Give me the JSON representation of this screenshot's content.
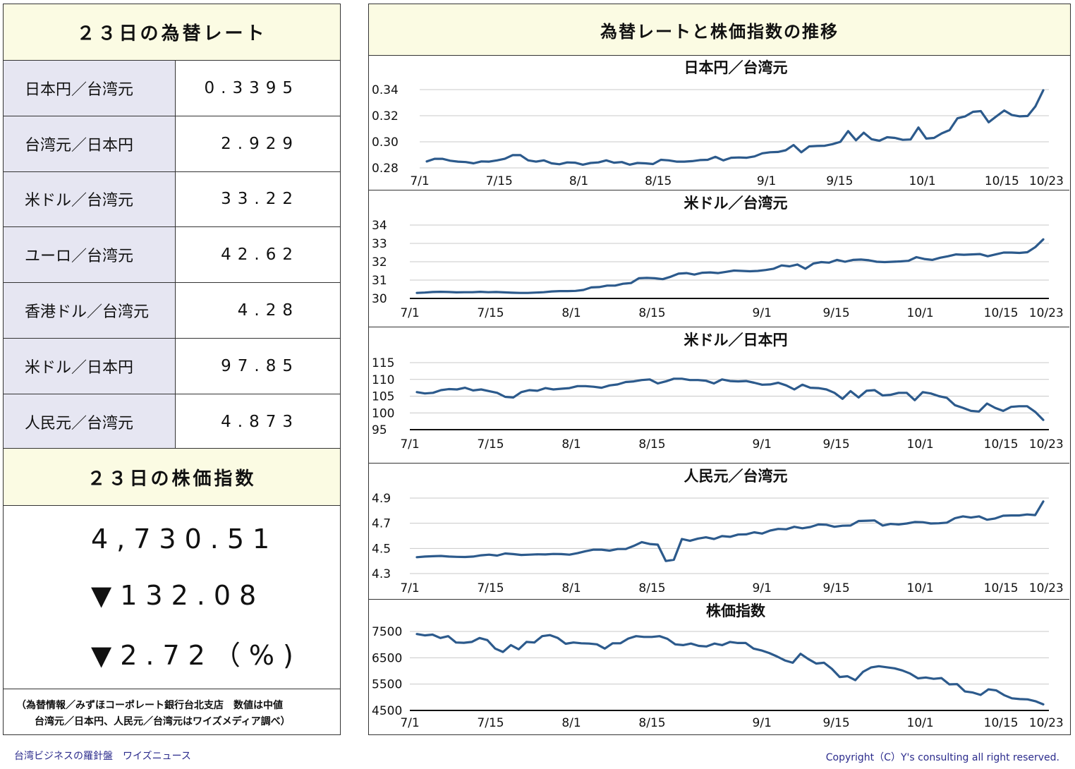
{
  "rates": {
    "title": "２３日の為替レート",
    "rows": [
      {
        "name": "日本円／台湾元",
        "value": "0.3395"
      },
      {
        "name": "台湾元／日本円",
        "value": "2.929"
      },
      {
        "name": "米ドル／台湾元",
        "value": "33.22"
      },
      {
        "name": "ユーロ／台湾元",
        "value": "42.62"
      },
      {
        "name": "香港ドル／台湾元",
        "value": "4.28"
      },
      {
        "name": "米ドル／日本円",
        "value": "97.85"
      },
      {
        "name": "人民元／台湾元",
        "value": "4.873"
      }
    ]
  },
  "index": {
    "title": "２３日の株価指数",
    "value": "4,730.51",
    "change": "▼132.08",
    "percent": "▼2.72（%)",
    "note_line1": "（為替情報／みずほコーポレート銀行台北支店　数値は中値",
    "note_line2": "台湾元／日本円、人民元／台湾元はワイズメディア調べ）"
  },
  "panel": {
    "title": "為替レートと株価指数の推移"
  },
  "footer": {
    "left": "台湾ビジネスの羅針盤　ワイズニュース",
    "right": "Copyright（C）Y's consulting all right reserved."
  },
  "chart_data": [
    {
      "type": "line",
      "title": "日本円／台湾元",
      "xticks": [
        "7/1",
        "7/15",
        "8/1",
        "8/15",
        "9/1",
        "9/15",
        "10/1",
        "10/15",
        "10/23"
      ],
      "yticks": [
        "0.34",
        "0.32",
        "0.30",
        "0.28"
      ],
      "ylim": [
        0.28,
        0.34
      ],
      "color": "#2c5a8c",
      "series": [
        {
          "values": [
            0.285,
            0.287,
            0.287,
            0.2855,
            0.2848,
            0.2845,
            0.2835,
            0.285,
            0.2848,
            0.2858,
            0.287,
            0.2898,
            0.2898,
            0.2858,
            0.2848,
            0.2858,
            0.2835,
            0.2828,
            0.2842,
            0.284,
            0.2825,
            0.2838,
            0.2842,
            0.2858,
            0.284,
            0.2845,
            0.2825,
            0.2838,
            0.2835,
            0.283,
            0.2862,
            0.2858,
            0.2848,
            0.2848,
            0.2852,
            0.286,
            0.2862,
            0.2885,
            0.2858,
            0.2878,
            0.288,
            0.2878,
            0.2888,
            0.2912,
            0.292,
            0.2922,
            0.2935,
            0.2975,
            0.292,
            0.2965,
            0.2968,
            0.297,
            0.2982,
            0.3,
            0.3082,
            0.3012,
            0.307,
            0.302,
            0.3008,
            0.3035,
            0.303,
            0.3015,
            0.3018,
            0.311,
            0.3025,
            0.303,
            0.3065,
            0.309,
            0.318,
            0.3195,
            0.323,
            0.3235,
            0.315,
            0.3195,
            0.324,
            0.3205,
            0.3195,
            0.3198,
            0.3272,
            0.3395
          ]
        }
      ]
    },
    {
      "type": "line",
      "title": "米ドル／台湾元",
      "xticks": [
        "7/1",
        "7/15",
        "8/1",
        "8/15",
        "9/1",
        "9/15",
        "10/1",
        "10/15",
        "10/23"
      ],
      "yticks": [
        "34",
        "33",
        "32",
        "31",
        "30"
      ],
      "ylim": [
        30,
        34
      ],
      "color": "#2c5a8c",
      "series": [
        {
          "values": [
            30.3,
            30.32,
            30.35,
            30.36,
            30.35,
            30.33,
            30.34,
            30.34,
            30.36,
            30.34,
            30.35,
            30.33,
            30.31,
            30.3,
            30.3,
            30.32,
            30.34,
            30.38,
            30.4,
            30.4,
            30.41,
            30.46,
            30.6,
            30.62,
            30.7,
            30.7,
            30.8,
            30.84,
            31.1,
            31.12,
            31.1,
            31.05,
            31.18,
            31.35,
            31.38,
            31.3,
            31.4,
            31.42,
            31.38,
            31.45,
            31.52,
            31.5,
            31.48,
            31.5,
            31.55,
            31.62,
            31.8,
            31.75,
            31.85,
            31.62,
            31.9,
            31.98,
            31.95,
            32.1,
            32.0,
            32.1,
            32.12,
            32.08,
            32.0,
            31.98,
            32.0,
            32.02,
            32.05,
            32.25,
            32.15,
            32.1,
            32.22,
            32.3,
            32.4,
            32.38,
            32.4,
            32.42,
            32.3,
            32.4,
            32.5,
            32.5,
            32.48,
            32.52,
            32.8,
            33.22
          ]
        }
      ]
    },
    {
      "type": "line",
      "title": "米ドル／日本円",
      "xticks": [
        "7/1",
        "7/15",
        "8/1",
        "8/15",
        "9/1",
        "9/15",
        "10/1",
        "10/15",
        "10/23"
      ],
      "yticks": [
        "115",
        "110",
        "105",
        "100",
        "95"
      ],
      "ylim": [
        95,
        115
      ],
      "color": "#2c5a8c",
      "series": [
        {
          "values": [
            106.2,
            105.8,
            106.0,
            106.8,
            107.1,
            107.0,
            107.5,
            106.7,
            107.0,
            106.5,
            106.0,
            104.8,
            104.6,
            106.2,
            106.8,
            106.6,
            107.4,
            107.0,
            107.2,
            107.4,
            108.0,
            108.0,
            107.8,
            107.5,
            108.2,
            108.5,
            109.2,
            109.4,
            109.8,
            110.0,
            108.8,
            109.4,
            110.2,
            110.2,
            109.8,
            109.8,
            109.6,
            108.8,
            110.0,
            109.5,
            109.4,
            109.5,
            109.0,
            108.4,
            108.5,
            109.0,
            108.2,
            107.0,
            108.4,
            107.5,
            107.4,
            107.0,
            106.0,
            104.2,
            106.5,
            104.6,
            106.6,
            106.8,
            105.2,
            105.4,
            106.0,
            106.0,
            103.8,
            106.2,
            105.8,
            105.0,
            104.5,
            102.3,
            101.5,
            100.6,
            100.4,
            102.8,
            101.5,
            100.6,
            101.8,
            102.0,
            102.0,
            100.3,
            97.9
          ]
        }
      ]
    },
    {
      "type": "line",
      "title": "人民元／台湾元",
      "xticks": [
        "7/1",
        "7/15",
        "8/1",
        "8/15",
        "9/1",
        "9/15",
        "10/1",
        "10/15",
        "10/23"
      ],
      "yticks": [
        "4.9",
        "4.7",
        "4.5",
        "4.3"
      ],
      "ylim": [
        4.3,
        4.9
      ],
      "color": "#2c5a8c",
      "series": [
        {
          "values": [
            4.43,
            4.435,
            4.438,
            4.44,
            4.435,
            4.433,
            4.432,
            4.435,
            4.445,
            4.45,
            4.443,
            4.46,
            4.455,
            4.448,
            4.45,
            4.453,
            4.452,
            4.456,
            4.455,
            4.45,
            4.462,
            4.478,
            4.49,
            4.49,
            4.482,
            4.495,
            4.495,
            4.52,
            4.55,
            4.535,
            4.53,
            4.4,
            4.41,
            4.575,
            4.56,
            4.578,
            4.588,
            4.575,
            4.598,
            4.592,
            4.61,
            4.612,
            4.628,
            4.618,
            4.642,
            4.655,
            4.652,
            4.672,
            4.66,
            4.67,
            4.69,
            4.688,
            4.672,
            4.68,
            4.682,
            4.718,
            4.72,
            4.722,
            4.682,
            4.695,
            4.69,
            4.698,
            4.71,
            4.708,
            4.698,
            4.7,
            4.705,
            4.74,
            4.755,
            4.745,
            4.755,
            4.728,
            4.738,
            4.76,
            4.762,
            4.762,
            4.77,
            4.765,
            4.873
          ]
        }
      ]
    },
    {
      "type": "line",
      "title": "株価指数",
      "xticks": [
        "7/1",
        "7/15",
        "8/1",
        "8/15",
        "9/1",
        "9/15",
        "10/1",
        "10/15",
        "10/23"
      ],
      "yticks": [
        "7500",
        "6500",
        "5500",
        "4500"
      ],
      "ylim": [
        4500,
        7500
      ],
      "color": "#2c5a8c",
      "series": [
        {
          "values": [
            7400,
            7350,
            7380,
            7250,
            7320,
            7080,
            7070,
            7100,
            7250,
            7170,
            6850,
            6720,
            6980,
            6820,
            7100,
            7080,
            7320,
            7360,
            7250,
            7030,
            7080,
            7050,
            7040,
            7010,
            6850,
            7050,
            7050,
            7230,
            7320,
            7290,
            7290,
            7320,
            7220,
            7010,
            6980,
            7040,
            6950,
            6930,
            7040,
            6980,
            7100,
            7060,
            7060,
            6850,
            6780,
            6680,
            6550,
            6400,
            6310,
            6650,
            6450,
            6280,
            6310,
            6080,
            5770,
            5800,
            5650,
            5970,
            6130,
            6180,
            6140,
            6100,
            6020,
            5900,
            5720,
            5750,
            5700,
            5730,
            5490,
            5500,
            5220,
            5180,
            5090,
            5300,
            5260,
            5080,
            4960,
            4930,
            4920,
            4850,
            4730
          ]
        }
      ]
    }
  ]
}
